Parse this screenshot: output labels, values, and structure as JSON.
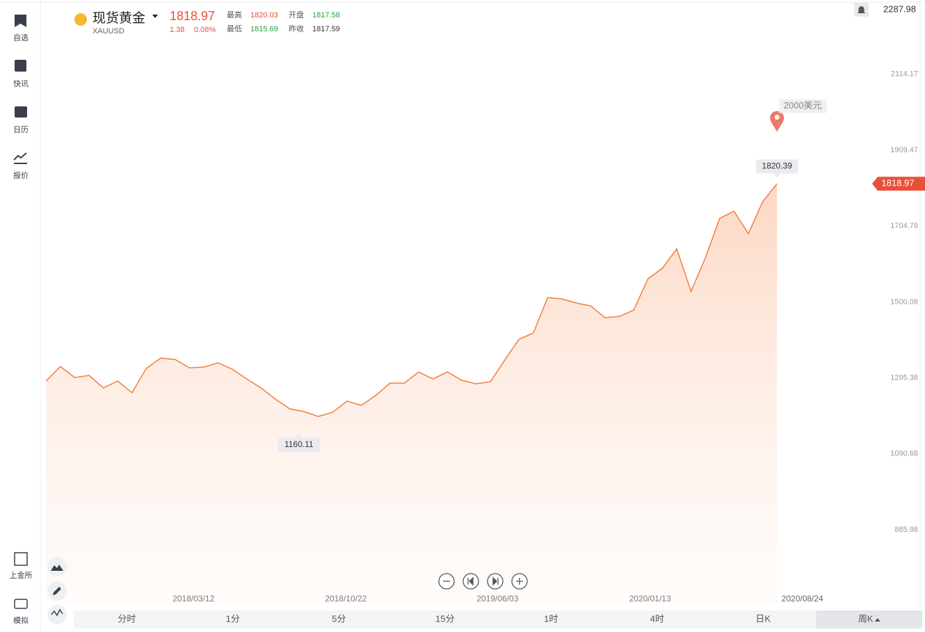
{
  "sidebar": {
    "items": [
      {
        "label": "自选"
      },
      {
        "label": "快讯"
      },
      {
        "label": "日历"
      },
      {
        "label": "报价"
      }
    ],
    "bottom_items": [
      {
        "label": "上金所"
      },
      {
        "label": "模拟"
      }
    ]
  },
  "quote": {
    "name": "现货黄金",
    "symbol": "XAUUSD",
    "price": 1818.97,
    "change": 1.38,
    "change_pct": "0.08%",
    "high_label": "最高",
    "high": 1820.03,
    "open_label": "开盘",
    "open": 1817.58,
    "low_label": "最低",
    "low": 1815.69,
    "prev_label": "昨收",
    "prev_close": 1817.59
  },
  "chart_data": {
    "type": "area",
    "color": "#f47c3c",
    "values": [
      1287.1,
      1326.5,
      1296.5,
      1302.1,
      1268.4,
      1287.1,
      1255.3,
      1320.9,
      1349.0,
      1345.2,
      1322.7,
      1324.6,
      1335.9,
      1319.0,
      1292.7,
      1268.4,
      1238.4,
      1212.1,
      1204.6,
      1191.5,
      1202.8,
      1232.8,
      1221.5,
      1247.8,
      1281.5,
      1281.5,
      1311.5,
      1292.7,
      1311.5,
      1289.0,
      1279.6,
      1285.2,
      1343.4,
      1399.6,
      1416.5,
      1512.0,
      1508.3,
      1497.1,
      1489.6,
      1457.7,
      1461.4,
      1478.3,
      1562.7,
      1590.8,
      1643.3,
      1528.9,
      1618.9,
      1725.7,
      1744.5,
      1684.5,
      1770.7,
      1818.97
    ],
    "xlim": [
      -0.3,
      57.2
    ],
    "xticks": [
      {
        "value": 10.29,
        "label": "2018/03/12"
      },
      {
        "value": 20.92,
        "label": "2018/10/22"
      },
      {
        "value": 31.5,
        "label": "2019/06/03"
      },
      {
        "value": 42.14,
        "label": "2020/01/13"
      },
      {
        "value": 52.77,
        "label": "2020/08/24"
      }
    ],
    "ylim": [
      683.5,
      2287.98
    ],
    "yticks": [
      885.98,
      1090.68,
      1295.38,
      1500.08,
      1704.78,
      1909.47,
      2114.17,
      2287.98
    ],
    "high_marker": 1820.39,
    "low_marker": 1160.11,
    "alert": {
      "value": 2000,
      "label": "2000美元"
    }
  },
  "tabs": [
    "分时",
    "1分",
    "5分",
    "15分",
    "1时",
    "4时",
    "日K",
    "周K"
  ],
  "active_tab": 7
}
